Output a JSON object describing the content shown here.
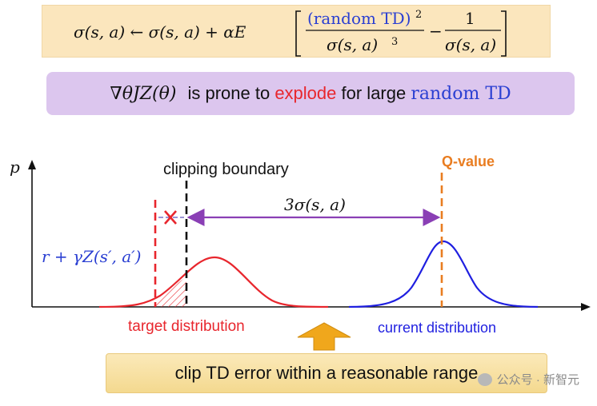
{
  "formula": {
    "lhs": "σ(s, a) ← σ(s, a) + αE",
    "frac1_num": "(random TD)",
    "frac1_exp": "2",
    "frac1_den": "σ(s, a)",
    "frac1_den_exp": "3",
    "minus": "−",
    "frac2_num": "1",
    "frac2_den": "σ(s, a)"
  },
  "note": {
    "math": "∇θJZ(θ)",
    "pre": "is prone to",
    "highlight": "explode",
    "mid": "for large",
    "td": "random TD"
  },
  "diagram": {
    "y_axis_label": "p",
    "clipping_label": "clipping boundary",
    "qvalue_label": "Q-value",
    "sigma_label": "3σ(s, a)",
    "target_label": "r + γZ(s′, a′)",
    "target_dist_label": "target distribution",
    "current_dist_label": "current distribution"
  },
  "clip": {
    "label": "clip TD error within a reasonable range"
  },
  "watermark": {
    "text": "公众号 · 新智元"
  },
  "colors": {
    "red": "#e8262d",
    "blue": "#1f1fe0",
    "orange": "#e97d21",
    "purple": "#8a3fb5",
    "td_blue": "#2a3fd2",
    "arrow_gold": "#f0a71c"
  }
}
